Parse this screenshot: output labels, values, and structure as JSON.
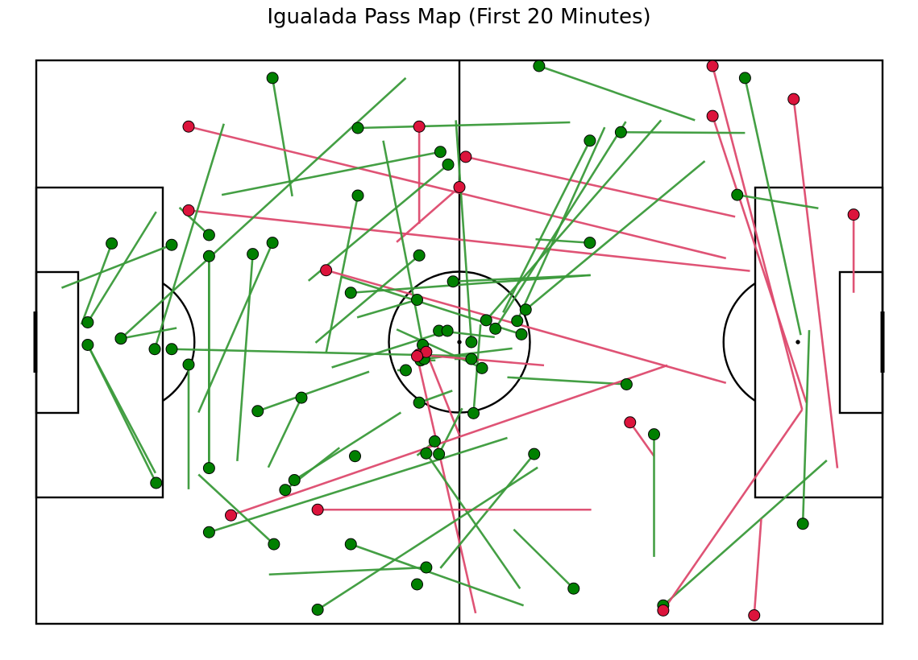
{
  "chart_data": {
    "type": "scatter",
    "title": "Igualada Pass Map (First 20 Minutes)",
    "pitch": {
      "length": 120,
      "width": 80
    },
    "colors": {
      "completed": "#3a9a3a",
      "incomplete": "#dd4a6e",
      "completed_marker": "#008000",
      "incomplete_marker": "#dc143c"
    },
    "passes": [
      {
        "x": 33.5,
        "y": 2.5,
        "end_x": 36.3,
        "end_y": 19.3,
        "outcome": "complete"
      },
      {
        "x": 21.6,
        "y": 9.4,
        "end_x": 97.8,
        "end_y": 28.1,
        "outcome": "incomplete"
      },
      {
        "x": 21.6,
        "y": 21.3,
        "end_x": 101.2,
        "end_y": 29.9,
        "outcome": "incomplete"
      },
      {
        "x": 54.3,
        "y": 9.4,
        "end_x": 54.3,
        "end_y": 23.2,
        "outcome": "incomplete"
      },
      {
        "x": 45.6,
        "y": 9.6,
        "end_x": 75.7,
        "end_y": 8.8,
        "outcome": "complete"
      },
      {
        "x": 19.2,
        "y": 26.2,
        "end_x": 3.6,
        "end_y": 32.3,
        "outcome": "complete"
      },
      {
        "x": 24.5,
        "y": 27.8,
        "end_x": 24.5,
        "end_y": 57.9,
        "outcome": "complete"
      },
      {
        "x": 24.5,
        "y": 24.8,
        "end_x": 20.3,
        "end_y": 20.9,
        "outcome": "complete"
      },
      {
        "x": 33.5,
        "y": 25.9,
        "end_x": 23.0,
        "end_y": 50.0,
        "outcome": "complete"
      },
      {
        "x": 30.7,
        "y": 27.5,
        "end_x": 28.5,
        "end_y": 56.9,
        "outcome": "complete"
      },
      {
        "x": 45.6,
        "y": 19.2,
        "end_x": 41.1,
        "end_y": 41.5,
        "outcome": "complete"
      },
      {
        "x": 41.1,
        "y": 29.8,
        "end_x": 97.8,
        "end_y": 45.8,
        "outcome": "incomplete"
      },
      {
        "x": 57.3,
        "y": 13.0,
        "end_x": 26.3,
        "end_y": 19.1,
        "outcome": "complete"
      },
      {
        "x": 58.4,
        "y": 14.8,
        "end_x": 38.6,
        "end_y": 31.3,
        "outcome": "complete"
      },
      {
        "x": 60.0,
        "y": 18.0,
        "end_x": 51.1,
        "end_y": 25.8,
        "outcome": "incomplete"
      },
      {
        "x": 60.9,
        "y": 13.7,
        "end_x": 99.1,
        "end_y": 22.2,
        "outcome": "incomplete"
      },
      {
        "x": 54.3,
        "y": 27.7,
        "end_x": 39.6,
        "end_y": 40.1,
        "outcome": "complete"
      },
      {
        "x": 59.1,
        "y": 31.4,
        "end_x": 78.6,
        "end_y": 30.5,
        "outcome": "complete"
      },
      {
        "x": 44.6,
        "y": 33.0,
        "end_x": 78.6,
        "end_y": 30.5,
        "outcome": "complete"
      },
      {
        "x": 10.7,
        "y": 26.0,
        "end_x": 6.4,
        "end_y": 37.5,
        "outcome": "complete"
      },
      {
        "x": 7.3,
        "y": 37.2,
        "end_x": 17.0,
        "end_y": 21.5,
        "outcome": "complete"
      },
      {
        "x": 7.3,
        "y": 40.4,
        "end_x": 16.9,
        "end_y": 58.6,
        "outcome": "complete"
      },
      {
        "x": 12.0,
        "y": 39.5,
        "end_x": 19.9,
        "end_y": 38.0,
        "outcome": "complete"
      },
      {
        "x": 12.0,
        "y": 39.5,
        "end_x": 52.4,
        "end_y": 2.5,
        "outcome": "complete"
      },
      {
        "x": 16.8,
        "y": 41.0,
        "end_x": 26.6,
        "end_y": 9.0,
        "outcome": "complete"
      },
      {
        "x": 19.2,
        "y": 41.0,
        "end_x": 61.5,
        "end_y": 42.0,
        "outcome": "complete"
      },
      {
        "x": 24.5,
        "y": 57.9,
        "end_x": 24.5,
        "end_y": 27.8,
        "outcome": "complete"
      },
      {
        "x": 21.6,
        "y": 43.2,
        "end_x": 21.6,
        "end_y": 60.9,
        "outcome": "complete"
      },
      {
        "x": 17.0,
        "y": 60.0,
        "end_x": 7.3,
        "end_y": 40.4,
        "outcome": "complete"
      },
      {
        "x": 54.0,
        "y": 34.0,
        "end_x": 45.5,
        "end_y": 36.5,
        "outcome": "complete"
      },
      {
        "x": 52.4,
        "y": 44.0,
        "end_x": 51.2,
        "end_y": 44.0,
        "outcome": "complete"
      },
      {
        "x": 57.1,
        "y": 38.4,
        "end_x": 65.0,
        "end_y": 39.3,
        "outcome": "complete"
      },
      {
        "x": 58.3,
        "y": 38.4,
        "end_x": 41.9,
        "end_y": 43.6,
        "outcome": "complete"
      },
      {
        "x": 54.8,
        "y": 40.4,
        "end_x": 49.2,
        "end_y": 11.4,
        "outcome": "complete"
      },
      {
        "x": 54.5,
        "y": 42.6,
        "end_x": 56.6,
        "end_y": 42.6,
        "outcome": "complete"
      },
      {
        "x": 55.0,
        "y": 42.4,
        "end_x": 67.5,
        "end_y": 40.9,
        "outcome": "complete"
      },
      {
        "x": 61.7,
        "y": 42.4,
        "end_x": 59.3,
        "end_y": 42.4,
        "outcome": "complete"
      },
      {
        "x": 63.2,
        "y": 43.7,
        "end_x": 51.1,
        "end_y": 38.2,
        "outcome": "complete"
      },
      {
        "x": 63.8,
        "y": 36.9,
        "end_x": 88.6,
        "end_y": 8.5,
        "outcome": "complete"
      },
      {
        "x": 65.1,
        "y": 38.1,
        "end_x": 83.6,
        "end_y": 8.7,
        "outcome": "complete"
      },
      {
        "x": 61.7,
        "y": 40.0,
        "end_x": 59.5,
        "end_y": 8.5,
        "outcome": "complete"
      },
      {
        "x": 68.2,
        "y": 37.0,
        "end_x": 80.6,
        "end_y": 9.5,
        "outcome": "complete"
      },
      {
        "x": 69.4,
        "y": 35.4,
        "end_x": 94.8,
        "end_y": 14.3,
        "outcome": "complete"
      },
      {
        "x": 68.8,
        "y": 38.9,
        "end_x": 43.2,
        "end_y": 30.7,
        "outcome": "complete"
      },
      {
        "x": 62.0,
        "y": 50.1,
        "end_x": 63.0,
        "end_y": 37.5,
        "outcome": "complete"
      },
      {
        "x": 54.2,
        "y": 41.8,
        "end_x": 72.0,
        "end_y": 43.3,
        "outcome": "incomplete"
      },
      {
        "x": 55.3,
        "y": 41.4,
        "end_x": 60.0,
        "end_y": 53.2,
        "outcome": "incomplete"
      },
      {
        "x": 54.0,
        "y": 42.0,
        "end_x": 62.3,
        "end_y": 78.5,
        "outcome": "incomplete"
      },
      {
        "x": 37.6,
        "y": 47.9,
        "end_x": 32.9,
        "end_y": 57.8,
        "outcome": "complete"
      },
      {
        "x": 31.4,
        "y": 49.8,
        "end_x": 47.2,
        "end_y": 44.2,
        "outcome": "complete"
      },
      {
        "x": 54.3,
        "y": 48.6,
        "end_x": 59.0,
        "end_y": 46.9,
        "outcome": "complete"
      },
      {
        "x": 56.5,
        "y": 54.1,
        "end_x": 54.0,
        "end_y": 56.1,
        "outcome": "complete"
      },
      {
        "x": 45.2,
        "y": 56.2,
        "end_x": 45.2,
        "end_y": 56.2,
        "outcome": "complete"
      },
      {
        "x": 55.3,
        "y": 55.8,
        "end_x": 68.6,
        "end_y": 75.0,
        "outcome": "complete"
      },
      {
        "x": 57.1,
        "y": 55.9,
        "end_x": 60.4,
        "end_y": 49.4,
        "outcome": "complete"
      },
      {
        "x": 36.6,
        "y": 59.6,
        "end_x": 51.7,
        "end_y": 50.0,
        "outcome": "complete"
      },
      {
        "x": 70.6,
        "y": 55.9,
        "end_x": 57.3,
        "end_y": 72.1,
        "outcome": "complete"
      },
      {
        "x": 35.3,
        "y": 61.0,
        "end_x": 43.0,
        "end_y": 55.0,
        "outcome": "complete"
      },
      {
        "x": 83.7,
        "y": 46.0,
        "end_x": 66.8,
        "end_y": 45.0,
        "outcome": "complete"
      },
      {
        "x": 27.6,
        "y": 64.6,
        "end_x": 89.5,
        "end_y": 43.3,
        "outcome": "incomplete"
      },
      {
        "x": 39.9,
        "y": 63.8,
        "end_x": 78.7,
        "end_y": 63.8,
        "outcome": "incomplete"
      },
      {
        "x": 84.2,
        "y": 51.4,
        "end_x": 87.6,
        "end_y": 56.2,
        "outcome": "incomplete"
      },
      {
        "x": 87.6,
        "y": 53.1,
        "end_x": 87.6,
        "end_y": 70.5,
        "outcome": "complete"
      },
      {
        "x": 24.5,
        "y": 67.0,
        "end_x": 66.8,
        "end_y": 53.6,
        "outcome": "complete"
      },
      {
        "x": 33.7,
        "y": 68.7,
        "end_x": 23.0,
        "end_y": 58.8,
        "outcome": "complete"
      },
      {
        "x": 44.6,
        "y": 68.7,
        "end_x": 69.1,
        "end_y": 77.4,
        "outcome": "complete"
      },
      {
        "x": 55.3,
        "y": 72.0,
        "end_x": 33.0,
        "end_y": 73.0,
        "outcome": "complete"
      },
      {
        "x": 54.0,
        "y": 74.4,
        "end_x": 54.0,
        "end_y": 74.4,
        "outcome": "complete"
      },
      {
        "x": 76.2,
        "y": 75.0,
        "end_x": 67.7,
        "end_y": 66.6,
        "outcome": "complete"
      },
      {
        "x": 39.9,
        "y": 78.0,
        "end_x": 71.1,
        "end_y": 57.8,
        "outcome": "complete"
      },
      {
        "x": 95.9,
        "y": 0.8,
        "end_x": 108.6,
        "end_y": 49.6,
        "outcome": "incomplete"
      },
      {
        "x": 95.9,
        "y": 7.9,
        "end_x": 109.2,
        "end_y": 48.6,
        "outcome": "incomplete"
      },
      {
        "x": 107.4,
        "y": 5.5,
        "end_x": 113.6,
        "end_y": 57.9,
        "outcome": "incomplete"
      },
      {
        "x": 100.5,
        "y": 2.5,
        "end_x": 108.4,
        "end_y": 39.0,
        "outcome": "complete"
      },
      {
        "x": 99.4,
        "y": 19.1,
        "end_x": 110.9,
        "end_y": 21.0,
        "outcome": "complete"
      },
      {
        "x": 115.9,
        "y": 21.9,
        "end_x": 115.9,
        "end_y": 33.0,
        "outcome": "incomplete"
      },
      {
        "x": 108.7,
        "y": 65.8,
        "end_x": 109.6,
        "end_y": 38.3,
        "outcome": "complete"
      },
      {
        "x": 88.9,
        "y": 77.4,
        "end_x": 112.1,
        "end_y": 56.8,
        "outcome": "complete"
      },
      {
        "x": 88.9,
        "y": 78.1,
        "end_x": 108.6,
        "end_y": 49.6,
        "outcome": "incomplete"
      },
      {
        "x": 101.8,
        "y": 78.8,
        "end_x": 102.8,
        "end_y": 65.1,
        "outcome": "incomplete"
      },
      {
        "x": 71.3,
        "y": 0.8,
        "end_x": 93.4,
        "end_y": 8.5,
        "outcome": "complete"
      },
      {
        "x": 82.9,
        "y": 10.2,
        "end_x": 100.5,
        "end_y": 10.3,
        "outcome": "complete"
      },
      {
        "x": 78.5,
        "y": 11.4,
        "end_x": 66.2,
        "end_y": 35.8,
        "outcome": "complete"
      },
      {
        "x": 78.5,
        "y": 25.9,
        "end_x": 70.8,
        "end_y": 25.4,
        "outcome": "complete"
      }
    ]
  }
}
